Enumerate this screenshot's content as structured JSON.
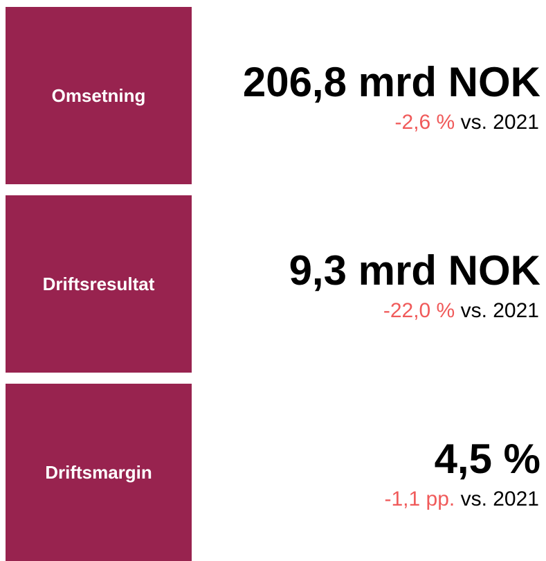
{
  "kpis": [
    {
      "label": "Omsetning",
      "value": "206,8 mrd NOK",
      "change": "-2,6 %",
      "comparison": "vs. 2021"
    },
    {
      "label": "Driftsresultat",
      "value": "9,3 mrd NOK",
      "change": "-22,0 %",
      "comparison": "vs. 2021"
    },
    {
      "label": "Driftsmargin",
      "value": "4,5 %",
      "change": "-1,1 pp.",
      "comparison": "vs. 2021"
    }
  ]
}
